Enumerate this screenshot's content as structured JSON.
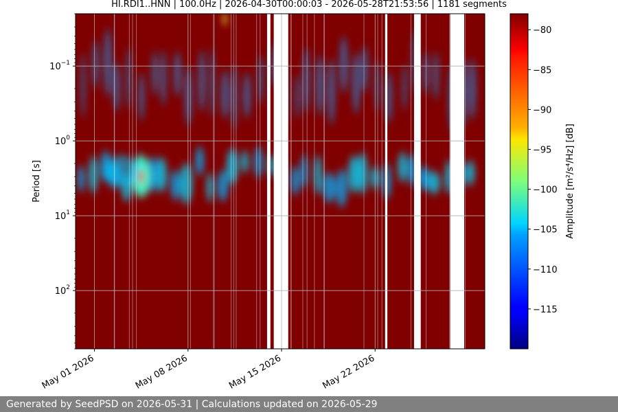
{
  "chart_data": {
    "type": "heatmap",
    "title": "HI.RDI1..HNN | 100.0Hz | 2026-04-30T00:00:03 - 2026-05-28T21:53:56 | 1181 segments",
    "xlabel": "",
    "ylabel": "Period [s]",
    "y_scale": "log",
    "y_inverted": true,
    "y_range": [
      0.02,
      600
    ],
    "y_ticks": [
      {
        "value": 0.1,
        "label": "10",
        "exp": "−1"
      },
      {
        "value": 1,
        "label": "10",
        "exp": "0"
      },
      {
        "value": 10,
        "label": "10",
        "exp": "1"
      },
      {
        "value": 100,
        "label": "10",
        "exp": "2"
      }
    ],
    "x_range": [
      "2026-04-29T14:00:00",
      "2026-05-30T05:00:00"
    ],
    "x_ticks": [
      {
        "date": "2026-05-01",
        "label": "May 01 2026"
      },
      {
        "date": "2026-05-08",
        "label": "May 08 2026"
      },
      {
        "date": "2026-05-15",
        "label": "May 15 2026"
      },
      {
        "date": "2026-05-22",
        "label": "May 22 2026"
      }
    ],
    "data_gaps": [
      {
        "start": "2026-05-13T22:00:00",
        "end": "2026-05-14T04:00:00"
      },
      {
        "start": "2026-05-14T10:00:00",
        "end": "2026-05-15T12:00:00"
      },
      {
        "start": "2026-05-22T18:00:00",
        "end": "2026-05-22T22:00:00"
      },
      {
        "start": "2026-05-24T22:00:00",
        "end": "2026-05-25T10:00:00"
      },
      {
        "start": "2026-05-27T15:00:00",
        "end": "2026-05-28T16:00:00"
      }
    ],
    "colorbar": {
      "label": "Amplitude [m²/s⁴/Hz] [dB]",
      "min": -120,
      "max": -78,
      "ticks": [
        -80,
        -85,
        -90,
        -95,
        -100,
        -105,
        -110,
        -115
      ],
      "colormap": "jet"
    },
    "grid": true
  },
  "footer": {
    "text": "Generated by SeedPSD on 2026-05-31 | Calculations updated on 2026-05-29"
  }
}
